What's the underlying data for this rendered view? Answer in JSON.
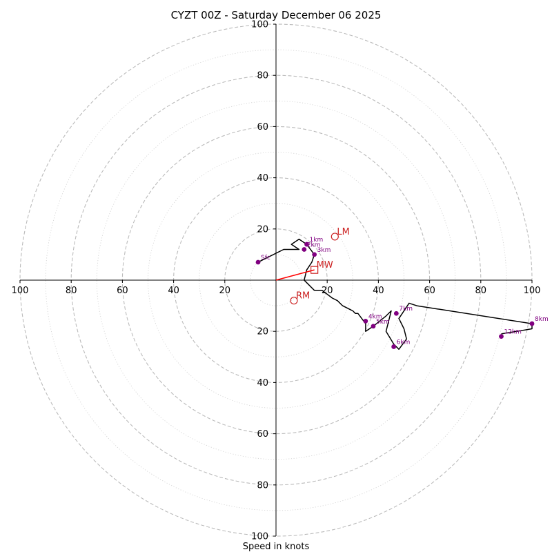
{
  "chart_data": {
    "type": "hodograph",
    "title": "CYZT 00Z - Saturday December 06 2025",
    "xlabel": "Speed in knots",
    "units": "knots",
    "range": [
      -100,
      100
    ],
    "ring_labels_major": [
      20,
      40,
      60,
      80,
      100
    ],
    "x_tick_labels": [
      "100",
      "80",
      "60",
      "40",
      "20",
      "20",
      "40",
      "60",
      "80",
      "100"
    ],
    "y_tick_labels": [
      "100",
      "80",
      "60",
      "40",
      "20",
      "20",
      "40",
      "60",
      "80",
      "100"
    ],
    "colors": {
      "profile": "#000000",
      "height_marker": "#800080",
      "storm_motion": "#cc2222",
      "mean_wind_vector": "#ff0000",
      "grid": "#bbbbbb",
      "axes": "#000000"
    },
    "profile": [
      [
        -7,
        7
      ],
      [
        3,
        12
      ],
      [
        9,
        12
      ],
      [
        6,
        14
      ],
      [
        9,
        16
      ],
      [
        12,
        14
      ],
      [
        15,
        10
      ],
      [
        14,
        7
      ],
      [
        12,
        4
      ],
      [
        11,
        0
      ],
      [
        12,
        -1
      ],
      [
        15,
        -4
      ],
      [
        18,
        -4
      ],
      [
        22,
        -7
      ],
      [
        24,
        -8
      ],
      [
        26,
        -10
      ],
      [
        30,
        -12
      ],
      [
        31,
        -13
      ],
      [
        32,
        -13
      ],
      [
        35,
        -17
      ],
      [
        35,
        -20
      ],
      [
        38,
        -18
      ],
      [
        43,
        -14
      ],
      [
        45,
        -12
      ],
      [
        43,
        -20
      ],
      [
        46,
        -25
      ],
      [
        48,
        -27
      ],
      [
        51,
        -23
      ],
      [
        50,
        -19
      ],
      [
        48,
        -15
      ],
      [
        52,
        -9
      ],
      [
        55,
        -10
      ],
      [
        100,
        -17
      ],
      [
        100,
        -19
      ],
      [
        88,
        -21
      ]
    ],
    "height_markers": [
      {
        "label": "Sfc",
        "u": -7,
        "v": 7
      },
      {
        "label": "1km",
        "u": 12,
        "v": 14
      },
      {
        "label": "2km",
        "u": 11,
        "v": 12
      },
      {
        "label": "3km",
        "u": 15,
        "v": 10
      },
      {
        "label": "4km",
        "u": 35,
        "v": -16
      },
      {
        "label": "5km",
        "u": 38,
        "v": -18
      },
      {
        "label": "6km",
        "u": 46,
        "v": -26
      },
      {
        "label": "7km",
        "u": 47,
        "v": -13
      },
      {
        "label": "8km",
        "u": 100,
        "v": -17
      },
      {
        "label": "12km",
        "u": 88,
        "v": -22
      }
    ],
    "storm_motion": [
      {
        "label": "LM",
        "u": 23,
        "v": 17,
        "marker": "circle"
      },
      {
        "label": "RM",
        "u": 7,
        "v": -8,
        "marker": "circle"
      },
      {
        "label": "MW",
        "u": 15,
        "v": 4,
        "marker": "square"
      }
    ],
    "mean_wind_vector": {
      "from": [
        0,
        0
      ],
      "to": [
        15,
        4
      ]
    }
  }
}
